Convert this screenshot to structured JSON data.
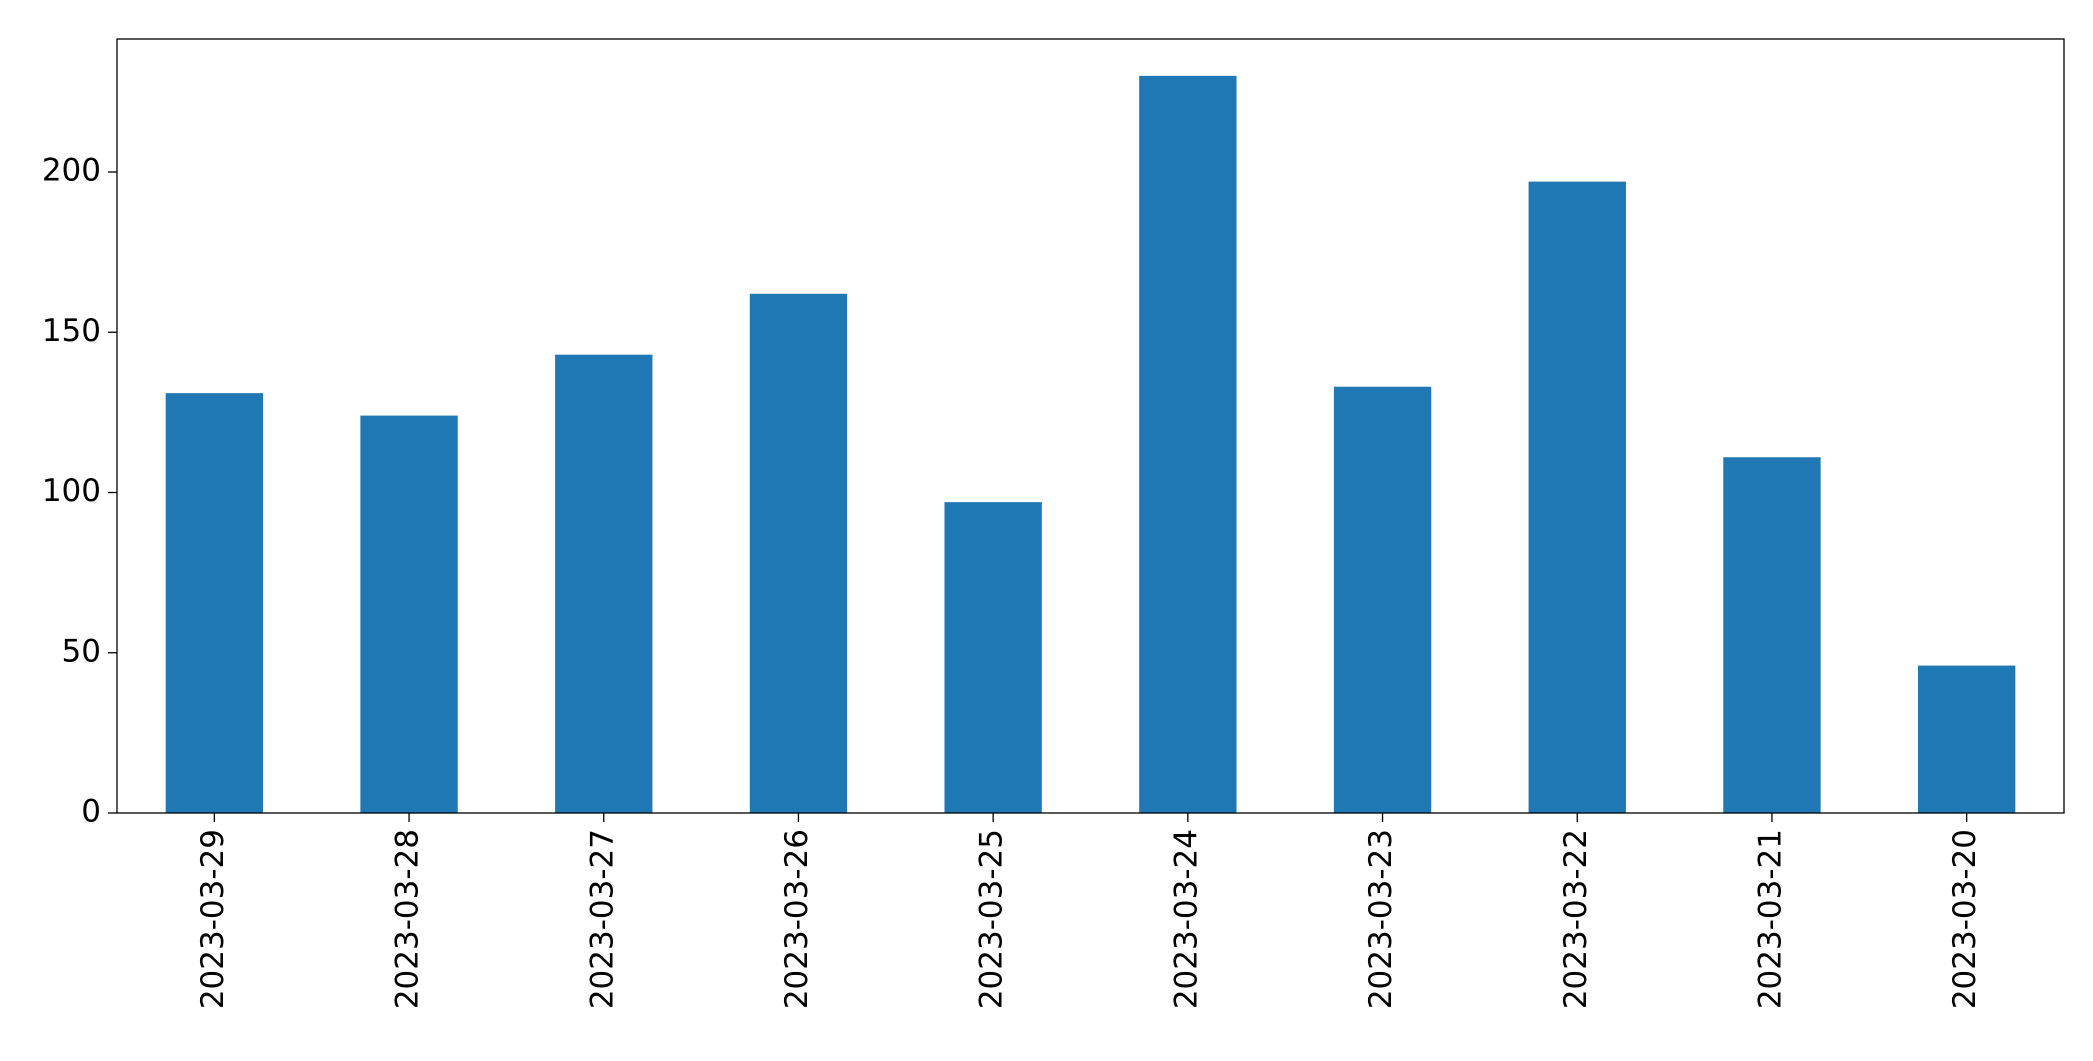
{
  "chart_data": {
    "type": "bar",
    "categories": [
      "2023-03-29",
      "2023-03-28",
      "2023-03-27",
      "2023-03-26",
      "2023-03-25",
      "2023-03-24",
      "2023-03-23",
      "2023-03-22",
      "2023-03-21",
      "2023-03-20"
    ],
    "values": [
      131,
      124,
      143,
      162,
      97,
      230,
      133,
      197,
      111,
      46
    ],
    "color": "#1f77b4",
    "ylim": [
      0,
      241.5
    ],
    "yticks": [
      0,
      50,
      100,
      150,
      200
    ],
    "grid": false
  }
}
